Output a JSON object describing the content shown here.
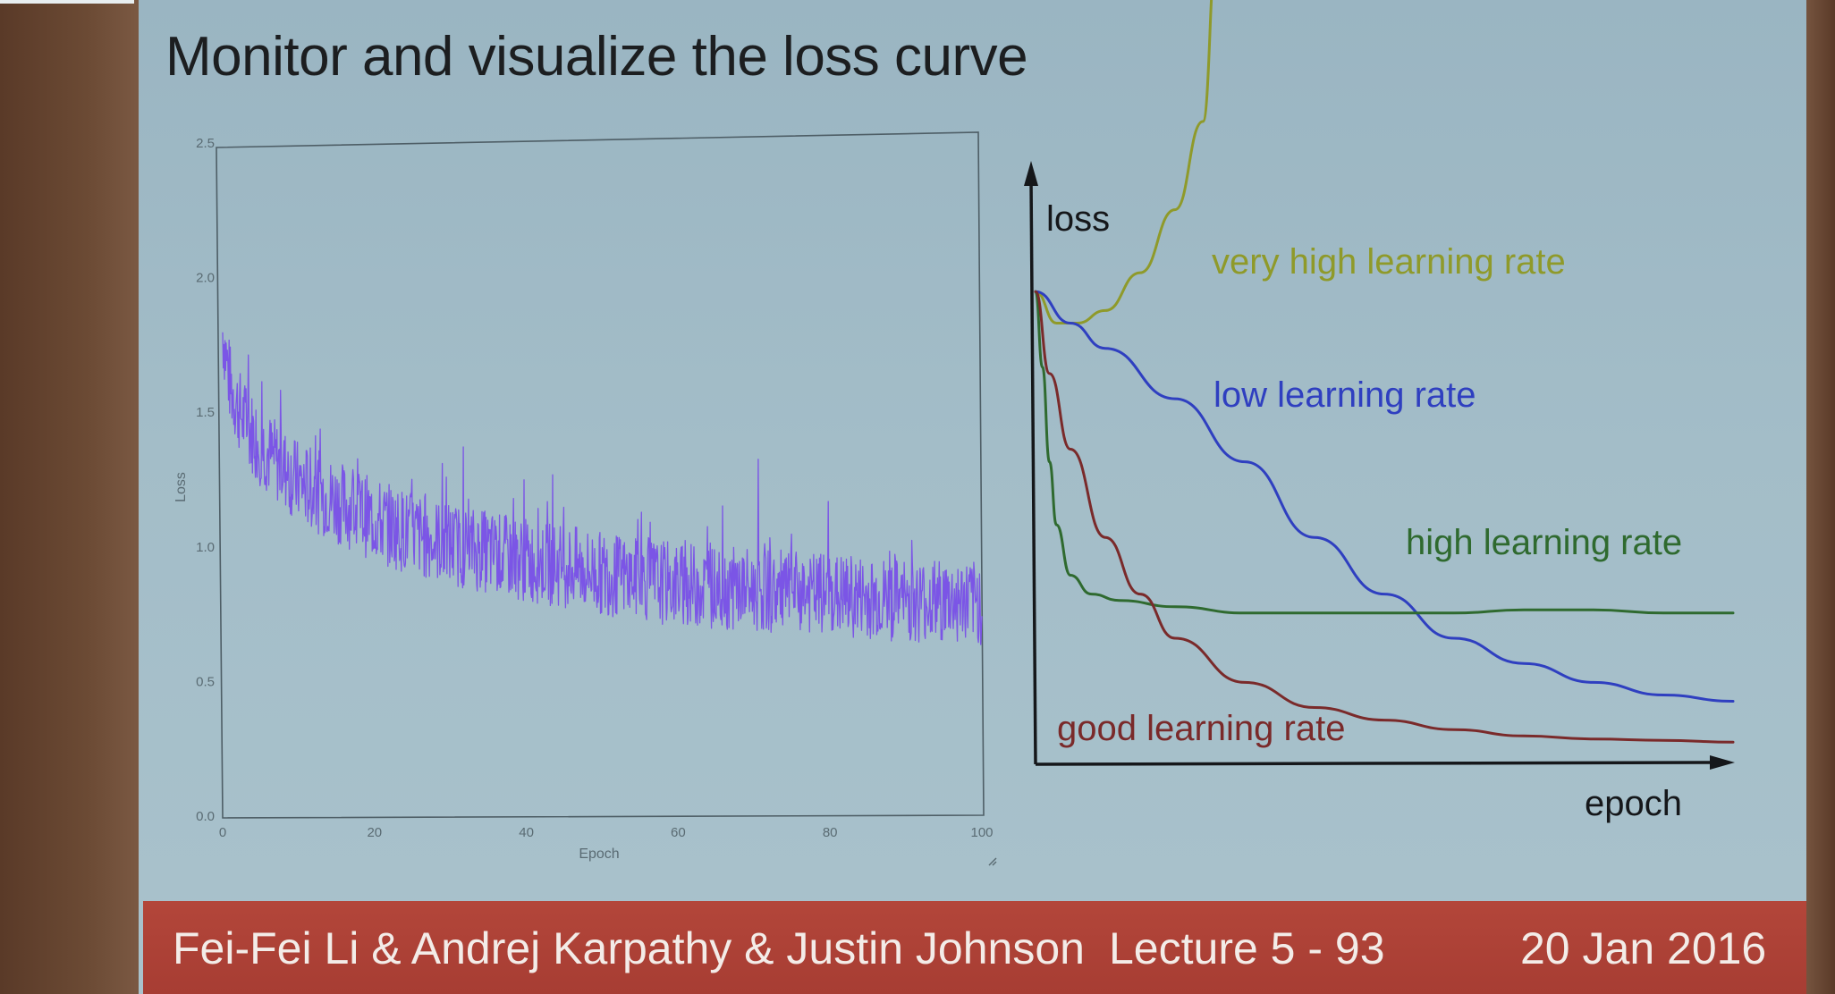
{
  "slide": {
    "title": "Monitor and visualize the loss curve",
    "footer": {
      "authors": "Fei-Fei Li & Andrej Karpathy & Justin Johnson",
      "lecture": "Lecture 5 - 93",
      "date": "20 Jan 2016"
    }
  },
  "chart_data": [
    {
      "type": "line",
      "title": "",
      "xlabel": "Epoch",
      "ylabel": "Loss",
      "xlim": [
        0,
        100
      ],
      "ylim": [
        0,
        2.5
      ],
      "x_ticks": [
        "0",
        "20",
        "40",
        "60",
        "80",
        "100"
      ],
      "y_ticks": [
        "0.0",
        "0.5",
        "1.0",
        "1.5",
        "2.0",
        "2.5"
      ],
      "grid": false,
      "series": [
        {
          "color": "#7b55e6",
          "x": [
            0,
            1,
            2,
            3,
            5,
            7,
            10,
            15,
            20,
            25,
            30,
            35,
            40,
            45,
            50,
            55,
            60,
            65,
            70,
            75,
            80,
            85,
            90,
            95,
            100
          ],
          "y": [
            1.8,
            1.6,
            1.52,
            1.46,
            1.38,
            1.32,
            1.24,
            1.17,
            1.1,
            1.05,
            1.01,
            0.98,
            0.95,
            0.93,
            0.9,
            0.88,
            0.86,
            0.85,
            0.84,
            0.83,
            0.82,
            0.81,
            0.8,
            0.8,
            0.79
          ],
          "noise_band": 0.12
        }
      ]
    },
    {
      "type": "line",
      "title": "",
      "xlabel": "epoch",
      "ylabel": "loss",
      "series": [
        {
          "name": "very high learning rate",
          "color": "#8f9a2a",
          "x": [
            0,
            3,
            6,
            10,
            15,
            20,
            24,
            26
          ],
          "y": [
            0.75,
            0.7,
            0.7,
            0.72,
            0.78,
            0.88,
            1.02,
            1.3
          ]
        },
        {
          "name": "low learning rate",
          "color": "#2f3fc0",
          "x": [
            0,
            5,
            10,
            20,
            30,
            40,
            50,
            60,
            70,
            80,
            90,
            100
          ],
          "y": [
            0.75,
            0.7,
            0.66,
            0.58,
            0.48,
            0.36,
            0.27,
            0.2,
            0.16,
            0.13,
            0.11,
            0.1
          ]
        },
        {
          "name": "high learning rate",
          "color": "#2f6a2f",
          "x": [
            0,
            1,
            2,
            3,
            5,
            8,
            12,
            20,
            30,
            40,
            50,
            60,
            70,
            80,
            90,
            100
          ],
          "y": [
            0.75,
            0.63,
            0.48,
            0.38,
            0.3,
            0.27,
            0.26,
            0.25,
            0.24,
            0.24,
            0.24,
            0.24,
            0.245,
            0.245,
            0.24,
            0.24
          ]
        },
        {
          "name": "good learning rate",
          "color": "#7a2a2a",
          "x": [
            0,
            2,
            5,
            10,
            15,
            20,
            30,
            40,
            50,
            60,
            70,
            80,
            90,
            100
          ],
          "y": [
            0.75,
            0.62,
            0.5,
            0.36,
            0.27,
            0.2,
            0.13,
            0.09,
            0.07,
            0.055,
            0.045,
            0.04,
            0.038,
            0.035
          ]
        }
      ]
    }
  ]
}
